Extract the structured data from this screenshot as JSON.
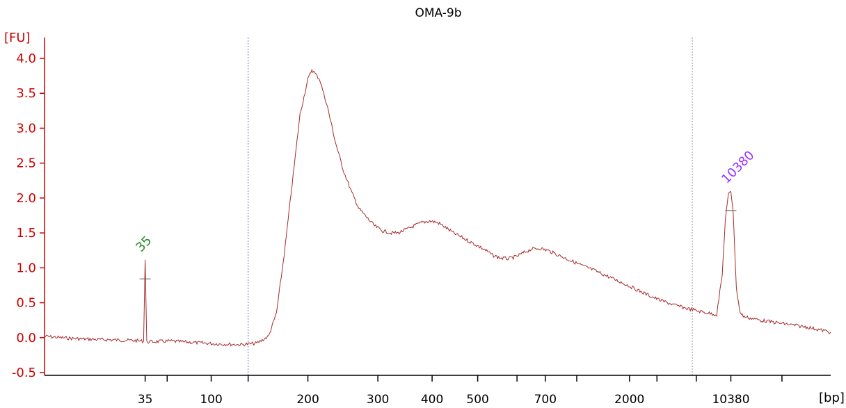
{
  "chart_data": {
    "type": "line",
    "title": "OMA-9b",
    "ylabel": "[FU]",
    "xlabel": "[bp]",
    "ylim": [
      -0.5,
      4.0
    ],
    "y_ticks": [
      {
        "value": -0.5,
        "label": "-0.5"
      },
      {
        "value": 0.0,
        "label": "0.0"
      },
      {
        "value": 0.5,
        "label": "0.5"
      },
      {
        "value": 1.0,
        "label": "1.0"
      },
      {
        "value": 1.5,
        "label": "1.5"
      },
      {
        "value": 2.0,
        "label": "2.0"
      },
      {
        "value": 2.5,
        "label": "2.5"
      },
      {
        "value": 3.0,
        "label": "3.0"
      },
      {
        "value": 3.5,
        "label": "3.5"
      },
      {
        "value": 4.0,
        "label": "4.0"
      }
    ],
    "x_ticks": [
      {
        "pos": 0.128,
        "label": "35"
      },
      {
        "pos": 0.156,
        "label": ""
      },
      {
        "pos": 0.212,
        "label": "100"
      },
      {
        "pos": 0.259,
        "label": ""
      },
      {
        "pos": 0.335,
        "label": "200"
      },
      {
        "pos": 0.424,
        "label": "300"
      },
      {
        "pos": 0.493,
        "label": "400"
      },
      {
        "pos": 0.551,
        "label": "500"
      },
      {
        "pos": 0.601,
        "label": ""
      },
      {
        "pos": 0.637,
        "label": "700"
      },
      {
        "pos": 0.677,
        "label": ""
      },
      {
        "pos": 0.744,
        "label": "2000"
      },
      {
        "pos": 0.779,
        "label": ""
      },
      {
        "pos": 0.829,
        "label": ""
      },
      {
        "pos": 0.873,
        "label": "10380"
      },
      {
        "pos": 0.938,
        "label": ""
      }
    ],
    "marker_lines": [
      0.259,
      0.824
    ],
    "series": [
      {
        "points": [
          [
            0.0,
            0.02
          ],
          [
            0.02,
            0.0
          ],
          [
            0.05,
            -0.02
          ],
          [
            0.08,
            -0.03
          ],
          [
            0.11,
            -0.04
          ],
          [
            0.126,
            -0.05
          ],
          [
            0.128,
            1.12
          ],
          [
            0.13,
            -0.06
          ],
          [
            0.16,
            -0.05
          ],
          [
            0.19,
            -0.07
          ],
          [
            0.22,
            -0.09
          ],
          [
            0.25,
            -0.1
          ],
          [
            0.27,
            -0.08
          ],
          [
            0.285,
            0.02
          ],
          [
            0.295,
            0.35
          ],
          [
            0.305,
            1.2
          ],
          [
            0.315,
            2.2
          ],
          [
            0.325,
            3.2
          ],
          [
            0.335,
            3.7
          ],
          [
            0.34,
            3.84
          ],
          [
            0.35,
            3.7
          ],
          [
            0.36,
            3.3
          ],
          [
            0.37,
            2.8
          ],
          [
            0.38,
            2.4
          ],
          [
            0.39,
            2.1
          ],
          [
            0.4,
            1.85
          ],
          [
            0.41,
            1.72
          ],
          [
            0.42,
            1.6
          ],
          [
            0.43,
            1.53
          ],
          [
            0.44,
            1.5
          ],
          [
            0.45,
            1.5
          ],
          [
            0.46,
            1.55
          ],
          [
            0.47,
            1.6
          ],
          [
            0.48,
            1.65
          ],
          [
            0.49,
            1.67
          ],
          [
            0.5,
            1.65
          ],
          [
            0.51,
            1.58
          ],
          [
            0.52,
            1.5
          ],
          [
            0.54,
            1.38
          ],
          [
            0.56,
            1.26
          ],
          [
            0.57,
            1.18
          ],
          [
            0.58,
            1.14
          ],
          [
            0.59,
            1.13
          ],
          [
            0.6,
            1.16
          ],
          [
            0.61,
            1.22
          ],
          [
            0.62,
            1.27
          ],
          [
            0.63,
            1.28
          ],
          [
            0.64,
            1.25
          ],
          [
            0.66,
            1.15
          ],
          [
            0.68,
            1.05
          ],
          [
            0.7,
            0.96
          ],
          [
            0.72,
            0.86
          ],
          [
            0.74,
            0.76
          ],
          [
            0.76,
            0.65
          ],
          [
            0.78,
            0.55
          ],
          [
            0.8,
            0.47
          ],
          [
            0.82,
            0.41
          ],
          [
            0.84,
            0.36
          ],
          [
            0.855,
            0.33
          ],
          [
            0.862,
            0.9
          ],
          [
            0.866,
            1.7
          ],
          [
            0.87,
            2.05
          ],
          [
            0.873,
            2.1
          ],
          [
            0.876,
            1.8
          ],
          [
            0.88,
            0.7
          ],
          [
            0.885,
            0.35
          ],
          [
            0.89,
            0.3
          ],
          [
            0.91,
            0.25
          ],
          [
            0.94,
            0.2
          ],
          [
            0.97,
            0.15
          ],
          [
            1.0,
            0.08
          ]
        ]
      }
    ],
    "peaks": [
      {
        "label": "35",
        "pos": 0.128,
        "value": 1.12,
        "color": "#228b22"
      },
      {
        "label": "10380",
        "pos": 0.873,
        "value": 2.1,
        "color": "#9b30ff"
      }
    ],
    "colors": {
      "trace": "#a52a2a",
      "y_axis": "#cc0000",
      "marker_line_left": "#7070c0",
      "marker_line_right": "#999999"
    }
  }
}
